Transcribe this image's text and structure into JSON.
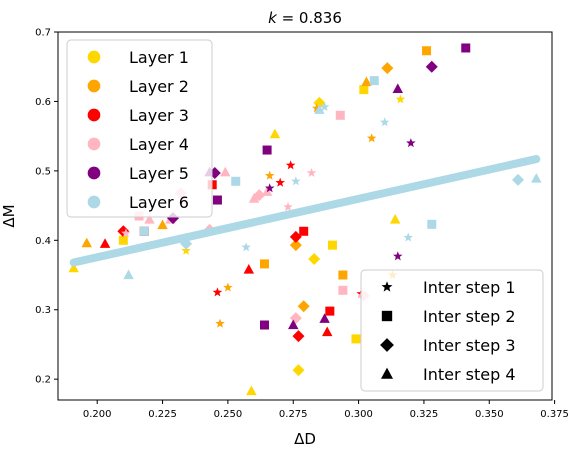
{
  "chart_data": {
    "type": "scatter",
    "title": "k = 0.836",
    "title_prefix": "k",
    "title_rest": " = 0.836",
    "xlabel": "ΔD",
    "ylabel": "ΔM",
    "xlim": [
      0.185,
      0.374
    ],
    "ylim": [
      0.17,
      0.7
    ],
    "xticks": [
      0.2,
      0.225,
      0.25,
      0.275,
      0.3,
      0.325,
      0.35,
      0.375
    ],
    "xtick_labels": [
      "0.200",
      "0.225",
      "0.250",
      "0.275",
      "0.300",
      "0.325",
      "0.350",
      "0.375"
    ],
    "yticks": [
      0.2,
      0.3,
      0.4,
      0.5,
      0.6,
      0.7
    ],
    "ytick_labels": [
      "0.2",
      "0.3",
      "0.4",
      "0.5",
      "0.6",
      "0.7"
    ],
    "grid": false,
    "fit_line": {
      "x": [
        0.191,
        0.368
      ],
      "y": [
        0.368,
        0.517
      ],
      "color": "#add8e6"
    },
    "layer_legend": {
      "placement": "upper-left",
      "entries": [
        {
          "name": "Layer 1",
          "color": "#ffd700"
        },
        {
          "name": "Layer 2",
          "color": "#ffa500"
        },
        {
          "name": "Layer 3",
          "color": "#ff0000"
        },
        {
          "name": "Layer 4",
          "color": "#ffb6c1"
        },
        {
          "name": "Layer 5",
          "color": "#800080"
        },
        {
          "name": "Layer 6",
          "color": "#add8e6"
        }
      ]
    },
    "step_legend": {
      "placement": "lower-right",
      "entries": [
        {
          "name": "Inter step 1",
          "marker": "star"
        },
        {
          "name": "Inter step 2",
          "marker": "square"
        },
        {
          "name": "Inter step 3",
          "marker": "diamond"
        },
        {
          "name": "Inter step 4",
          "marker": "triangle"
        }
      ]
    },
    "series": [
      {
        "name": "Layer 1",
        "color": "#ffd700",
        "points": [
          {
            "x": 0.191,
            "y": 0.36,
            "m": "triangle"
          },
          {
            "x": 0.21,
            "y": 0.4,
            "m": "square"
          },
          {
            "x": 0.234,
            "y": 0.385,
            "m": "star"
          },
          {
            "x": 0.259,
            "y": 0.183,
            "m": "triangle"
          },
          {
            "x": 0.268,
            "y": 0.553,
            "m": "triangle"
          },
          {
            "x": 0.276,
            "y": 0.402,
            "m": "star"
          },
          {
            "x": 0.277,
            "y": 0.213,
            "m": "diamond"
          },
          {
            "x": 0.283,
            "y": 0.373,
            "m": "diamond"
          },
          {
            "x": 0.285,
            "y": 0.598,
            "m": "diamond"
          },
          {
            "x": 0.29,
            "y": 0.393,
            "m": "square"
          },
          {
            "x": 0.299,
            "y": 0.258,
            "m": "square"
          },
          {
            "x": 0.302,
            "y": 0.617,
            "m": "square"
          },
          {
            "x": 0.314,
            "y": 0.43,
            "m": "triangle"
          },
          {
            "x": 0.316,
            "y": 0.603,
            "m": "star"
          }
        ]
      },
      {
        "name": "Layer 2",
        "color": "#ffa500",
        "points": [
          {
            "x": 0.196,
            "y": 0.396,
            "m": "triangle"
          },
          {
            "x": 0.225,
            "y": 0.422,
            "m": "triangle"
          },
          {
            "x": 0.247,
            "y": 0.28,
            "m": "star"
          },
          {
            "x": 0.25,
            "y": 0.332,
            "m": "star"
          },
          {
            "x": 0.264,
            "y": 0.366,
            "m": "square"
          },
          {
            "x": 0.266,
            "y": 0.493,
            "m": "star"
          },
          {
            "x": 0.276,
            "y": 0.393,
            "m": "diamond"
          },
          {
            "x": 0.279,
            "y": 0.305,
            "m": "diamond"
          },
          {
            "x": 0.284,
            "y": 0.59,
            "m": "star"
          },
          {
            "x": 0.294,
            "y": 0.35,
            "m": "square"
          },
          {
            "x": 0.303,
            "y": 0.628,
            "m": "triangle"
          },
          {
            "x": 0.305,
            "y": 0.547,
            "m": "star"
          },
          {
            "x": 0.311,
            "y": 0.648,
            "m": "diamond"
          },
          {
            "x": 0.313,
            "y": 0.35,
            "m": "star"
          },
          {
            "x": 0.326,
            "y": 0.673,
            "m": "square"
          }
        ]
      },
      {
        "name": "Layer 3",
        "color": "#ff0000",
        "points": [
          {
            "x": 0.203,
            "y": 0.395,
            "m": "triangle"
          },
          {
            "x": 0.21,
            "y": 0.413,
            "m": "diamond"
          },
          {
            "x": 0.218,
            "y": 0.413,
            "m": "square"
          },
          {
            "x": 0.244,
            "y": 0.48,
            "m": "square"
          },
          {
            "x": 0.246,
            "y": 0.325,
            "m": "star"
          },
          {
            "x": 0.258,
            "y": 0.358,
            "m": "triangle"
          },
          {
            "x": 0.27,
            "y": 0.483,
            "m": "star"
          },
          {
            "x": 0.274,
            "y": 0.508,
            "m": "star"
          },
          {
            "x": 0.276,
            "y": 0.405,
            "m": "diamond"
          },
          {
            "x": 0.277,
            "y": 0.262,
            "m": "diamond"
          },
          {
            "x": 0.279,
            "y": 0.413,
            "m": "square"
          },
          {
            "x": 0.288,
            "y": 0.268,
            "m": "triangle"
          },
          {
            "x": 0.289,
            "y": 0.298,
            "m": "square"
          },
          {
            "x": 0.301,
            "y": 0.323,
            "m": "star"
          }
        ]
      },
      {
        "name": "Layer 4",
        "color": "#ffb6c1",
        "points": [
          {
            "x": 0.211,
            "y": 0.41,
            "m": "star"
          },
          {
            "x": 0.216,
            "y": 0.435,
            "m": "square"
          },
          {
            "x": 0.22,
            "y": 0.43,
            "m": "triangle"
          },
          {
            "x": 0.228,
            "y": 0.43,
            "m": "triangle"
          },
          {
            "x": 0.232,
            "y": 0.468,
            "m": "diamond"
          },
          {
            "x": 0.233,
            "y": 0.457,
            "m": "triangle"
          },
          {
            "x": 0.243,
            "y": 0.415,
            "m": "diamond"
          },
          {
            "x": 0.249,
            "y": 0.498,
            "m": "triangle"
          },
          {
            "x": 0.26,
            "y": 0.46,
            "m": "triangle"
          },
          {
            "x": 0.262,
            "y": 0.465,
            "m": "diamond"
          },
          {
            "x": 0.265,
            "y": 0.47,
            "m": "triangle"
          },
          {
            "x": 0.273,
            "y": 0.448,
            "m": "star"
          },
          {
            "x": 0.276,
            "y": 0.288,
            "m": "diamond"
          },
          {
            "x": 0.282,
            "y": 0.497,
            "m": "star"
          },
          {
            "x": 0.293,
            "y": 0.58,
            "m": "square"
          },
          {
            "x": 0.294,
            "y": 0.328,
            "m": "square"
          },
          {
            "x": 0.302,
            "y": 0.32,
            "m": "diamond"
          }
        ]
      },
      {
        "name": "Layer 5",
        "color": "#800080",
        "points": [
          {
            "x": 0.229,
            "y": 0.432,
            "m": "diamond"
          },
          {
            "x": 0.243,
            "y": 0.498,
            "m": "triangle"
          },
          {
            "x": 0.245,
            "y": 0.497,
            "m": "diamond"
          },
          {
            "x": 0.246,
            "y": 0.458,
            "m": "square"
          },
          {
            "x": 0.264,
            "y": 0.278,
            "m": "square"
          },
          {
            "x": 0.265,
            "y": 0.53,
            "m": "square"
          },
          {
            "x": 0.266,
            "y": 0.475,
            "m": "star"
          },
          {
            "x": 0.275,
            "y": 0.278,
            "m": "triangle"
          },
          {
            "x": 0.287,
            "y": 0.287,
            "m": "triangle"
          },
          {
            "x": 0.315,
            "y": 0.377,
            "m": "star"
          },
          {
            "x": 0.315,
            "y": 0.618,
            "m": "triangle"
          },
          {
            "x": 0.32,
            "y": 0.54,
            "m": "star"
          },
          {
            "x": 0.328,
            "y": 0.65,
            "m": "diamond"
          },
          {
            "x": 0.341,
            "y": 0.677,
            "m": "square"
          }
        ]
      },
      {
        "name": "Layer 6",
        "color": "#add8e6",
        "points": [
          {
            "x": 0.212,
            "y": 0.35,
            "m": "triangle"
          },
          {
            "x": 0.218,
            "y": 0.413,
            "m": "square"
          },
          {
            "x": 0.234,
            "y": 0.395,
            "m": "diamond"
          },
          {
            "x": 0.253,
            "y": 0.485,
            "m": "square"
          },
          {
            "x": 0.257,
            "y": 0.39,
            "m": "star"
          },
          {
            "x": 0.276,
            "y": 0.485,
            "m": "star"
          },
          {
            "x": 0.285,
            "y": 0.588,
            "m": "triangle"
          },
          {
            "x": 0.287,
            "y": 0.592,
            "m": "star"
          },
          {
            "x": 0.306,
            "y": 0.63,
            "m": "square"
          },
          {
            "x": 0.31,
            "y": 0.57,
            "m": "star"
          },
          {
            "x": 0.319,
            "y": 0.404,
            "m": "star"
          },
          {
            "x": 0.328,
            "y": 0.423,
            "m": "square"
          },
          {
            "x": 0.361,
            "y": 0.487,
            "m": "diamond"
          },
          {
            "x": 0.368,
            "y": 0.489,
            "m": "triangle"
          }
        ]
      }
    ]
  }
}
